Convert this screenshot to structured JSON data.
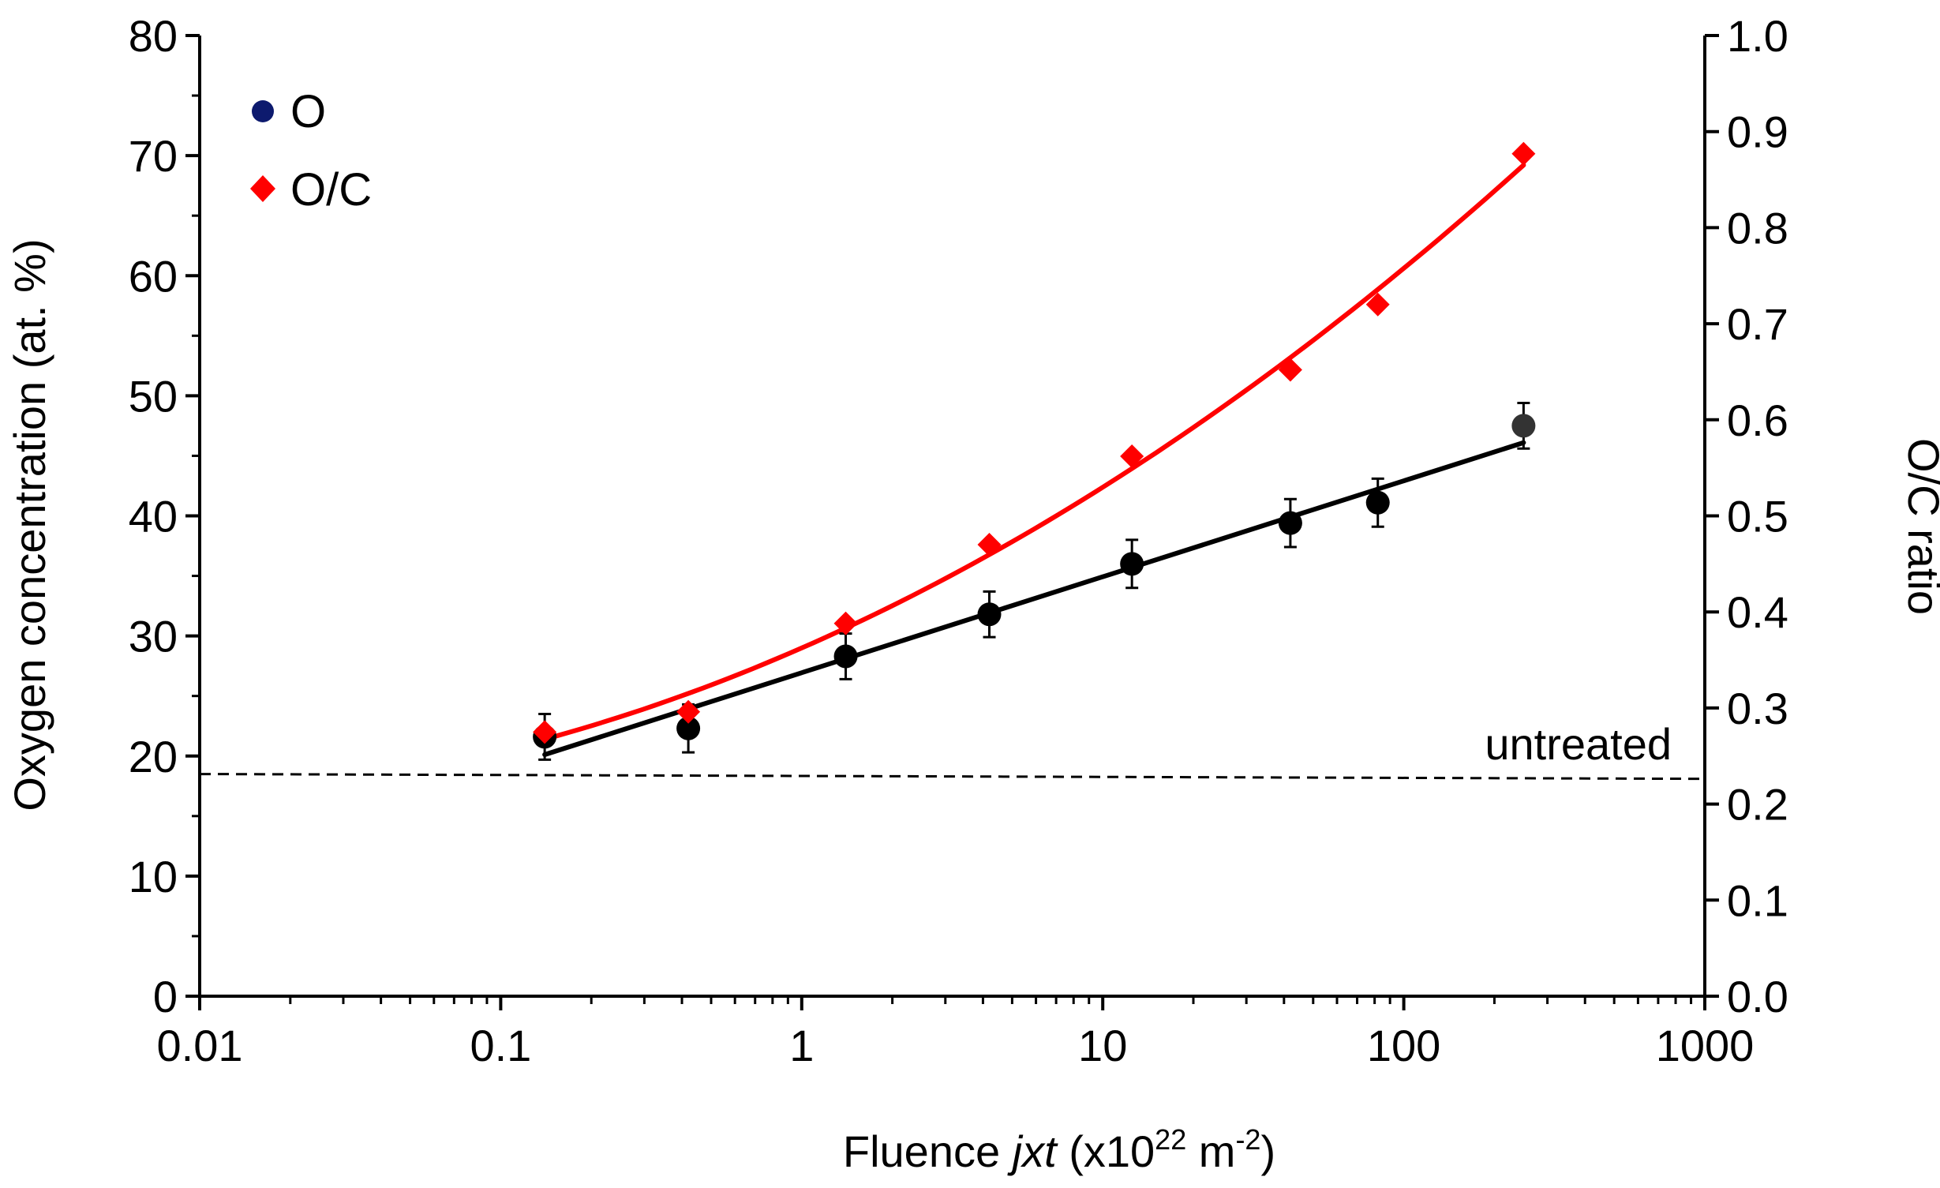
{
  "chart_data": {
    "type": "scatter",
    "x_scale": "log",
    "xlim": [
      0.01,
      1000
    ],
    "ylim_left": [
      0,
      80
    ],
    "ylim_right": [
      0,
      1.0
    ],
    "x_ticks": [
      "0.01",
      "0.1",
      "1",
      "10",
      "100",
      "1000"
    ],
    "y_left_ticks": [
      "0",
      "10",
      "20",
      "30",
      "40",
      "50",
      "60",
      "70",
      "80"
    ],
    "y_right_ticks": [
      "0.0",
      "0.1",
      "0.2",
      "0.3",
      "0.4",
      "0.5",
      "0.6",
      "0.7",
      "0.8",
      "0.9",
      "1.0"
    ],
    "xlabel": {
      "prefix": "Fluence ",
      "italic": "jxt",
      "unit_open": " (x10",
      "exp1": "22",
      "unit_mid": " m",
      "exp2": "-2",
      "unit_close": ")"
    },
    "ylabel_left": "Oxygen concentration (at. %)",
    "ylabel_right": "O/C ratio",
    "grid": false,
    "legend_position": "top-left",
    "series": [
      {
        "name": "O",
        "axis": "left",
        "marker": "circle",
        "color": "#000000",
        "legend_color": "#0d1a6e",
        "x": [
          0.14,
          0.42,
          1.4,
          4.2,
          12.5,
          42,
          82,
          250
        ],
        "y": [
          21.6,
          22.3,
          28.3,
          31.8,
          36.0,
          39.4,
          41.1,
          47.5
        ],
        "err": [
          1.9,
          2.0,
          1.9,
          1.9,
          2.0,
          2.0,
          2.0,
          1.9
        ],
        "fit": {
          "type": "log-linear",
          "x_range": [
            0.14,
            250
          ]
        }
      },
      {
        "name": "O/C",
        "axis": "right",
        "marker": "diamond",
        "color": "#ff0000",
        "x": [
          0.14,
          0.42,
          1.4,
          4.2,
          12.5,
          42,
          82,
          250
        ],
        "y": [
          0.275,
          0.296,
          0.388,
          0.47,
          0.562,
          0.652,
          0.72,
          0.877
        ],
        "fit": {
          "type": "smooth",
          "x_range": [
            0.14,
            250
          ]
        }
      }
    ],
    "annotations": [
      {
        "text": "untreated",
        "type": "dashed-line",
        "y_left_start": 18.5,
        "y_left_end": 18.1
      }
    ]
  }
}
